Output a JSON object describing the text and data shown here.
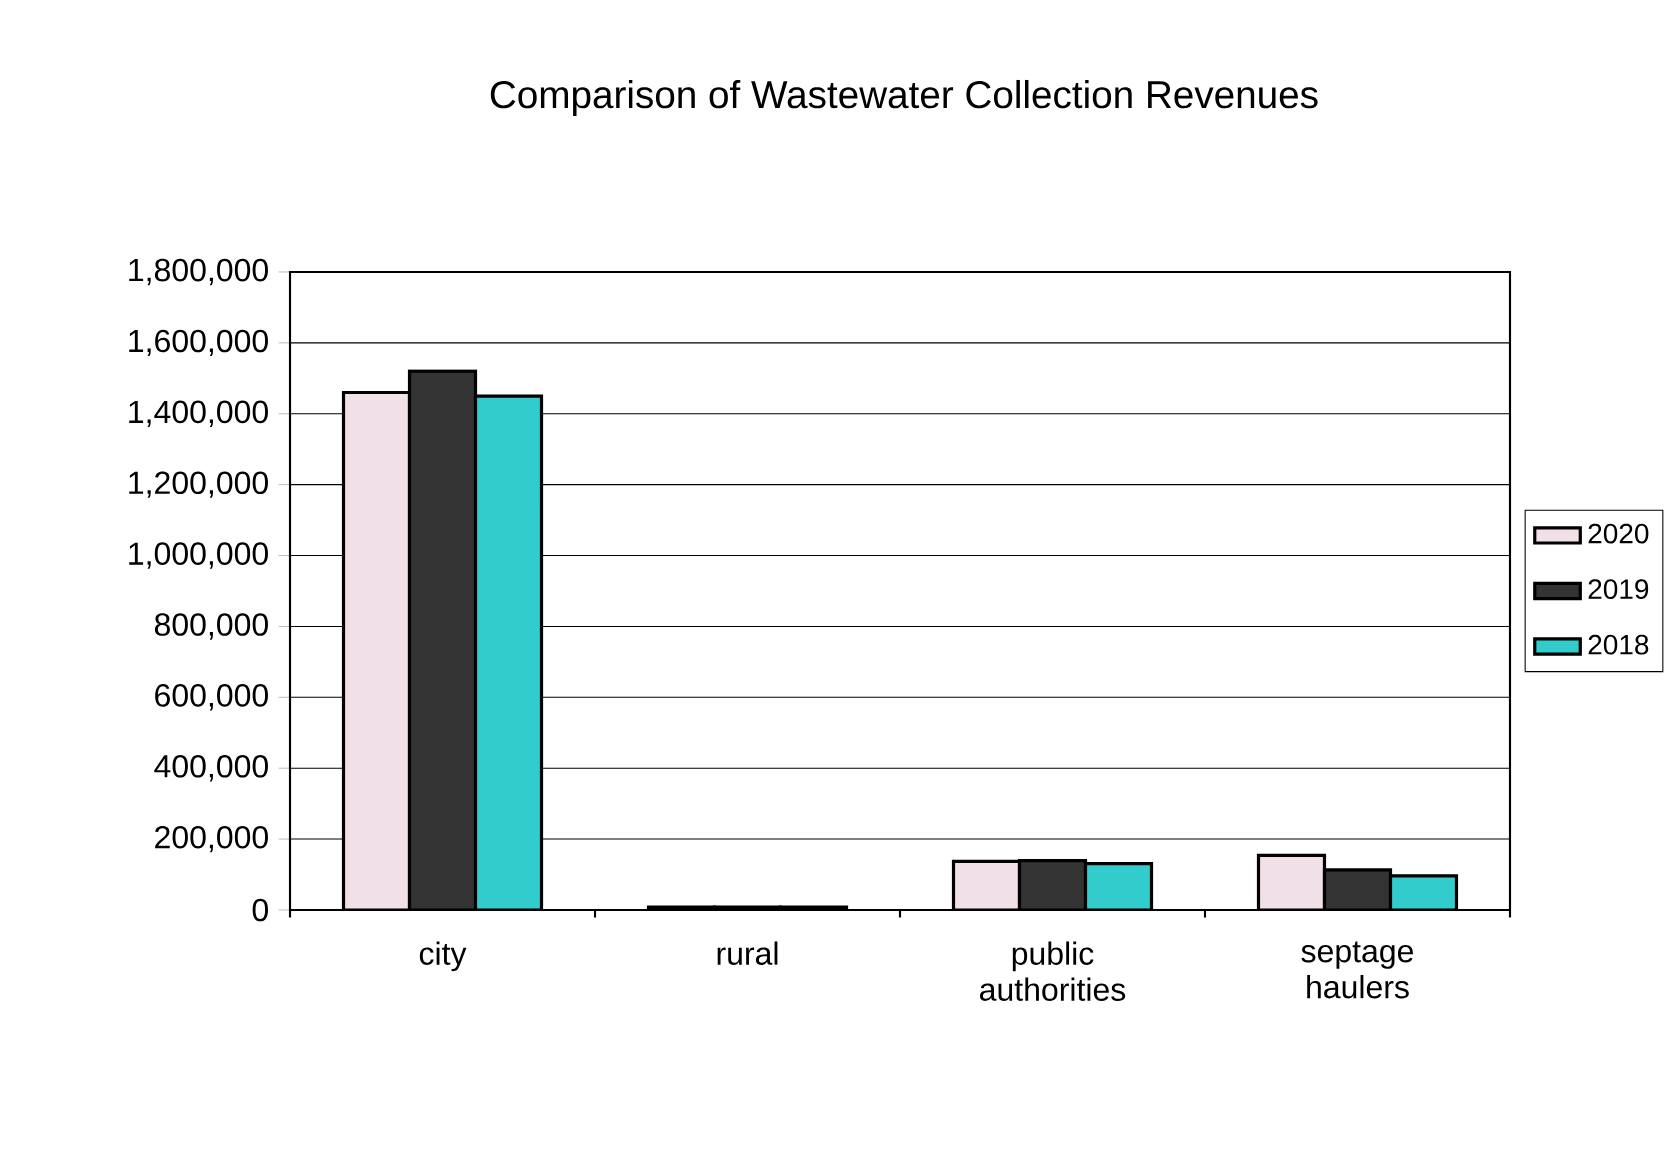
{
  "chart_data": {
    "type": "bar",
    "title": "Comparison of Wastewater Collection Revenues",
    "categories": [
      "city",
      "rural",
      "public authorities",
      "septage haulers"
    ],
    "series": [
      {
        "name": "2020",
        "color": "#f2e0e9",
        "values": [
          1460000,
          8000,
          137000,
          154000
        ]
      },
      {
        "name": "2019",
        "color": "#333333",
        "values": [
          1520000,
          8000,
          139000,
          113000
        ]
      },
      {
        "name": "2018",
        "color": "#33cccc",
        "values": [
          1450000,
          8000,
          131000,
          96000
        ]
      }
    ],
    "ylim": [
      0,
      1800000
    ],
    "yticks": [
      0,
      {
        "value": 200000,
        "label": "200,000"
      },
      {
        "value": 400000,
        "label": "400,000"
      },
      {
        "value": 600000,
        "label": "600,000"
      },
      {
        "value": 800000,
        "label": "800,000"
      },
      {
        "value": 1000000,
        "label": "1,000,000"
      },
      {
        "value": 1200000,
        "label": "1,200,000"
      },
      {
        "value": 1400000,
        "label": "1,400,000"
      },
      {
        "value": 1600000,
        "label": "1,600,000"
      },
      {
        "value": 1800000,
        "label": "1,800,000"
      }
    ],
    "grid": "y",
    "legend": "right"
  }
}
